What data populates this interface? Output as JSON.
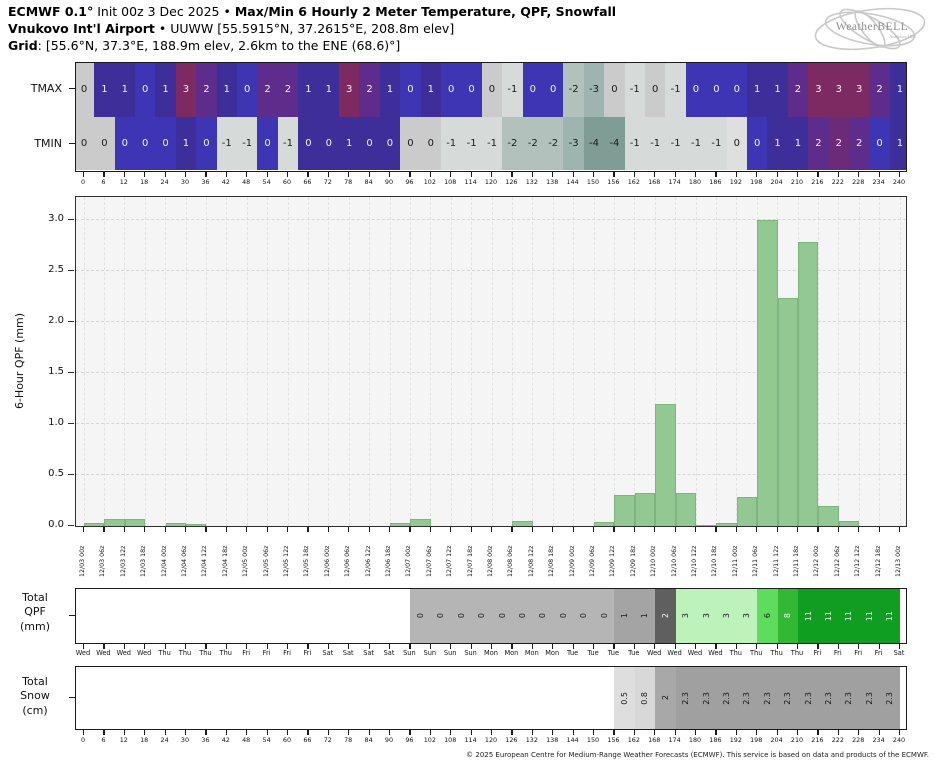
{
  "header": {
    "line1": {
      "bold1": "ECMWF 0.1°",
      "normal1": " Init 00z 3 Dec 2025 • ",
      "bold2": "Max/Min 6 Hourly 2 Meter Temperature, QPF, Snowfall"
    },
    "line2": {
      "bold": "Vnukovo Int'l Airport",
      "normal": " • UUWW [55.5915°N, 37.2615°E, 208.8m elev]"
    },
    "line3": {
      "bold": "Grid",
      "normal": ": [55.6°N, 37.3°E, 188.9m elev, 2.6km to the ENE (68.6)°]"
    },
    "logo": {
      "name": "WeatherBELL",
      "sub": "Analytics LLC"
    }
  },
  "chart_data": [
    {
      "type": "heatmap",
      "rows": [
        {
          "label": "TMAX",
          "values": [
            0,
            1,
            1,
            0,
            1,
            3,
            2,
            1,
            0,
            2,
            2,
            1,
            1,
            3,
            2,
            1,
            0,
            1,
            0,
            0,
            0,
            -1,
            0,
            0,
            -2,
            -3,
            0,
            -1,
            0,
            -1,
            0,
            0,
            0,
            1,
            1,
            2,
            3,
            3,
            3,
            2,
            1
          ],
          "colors": [
            "gray",
            "indigo",
            "indigo",
            "blue",
            "indigo",
            "magenta",
            "purple",
            "indigo",
            "blue",
            "purple",
            "purple",
            "indigo",
            "indigo",
            "magenta",
            "purple",
            "indigo",
            "blue",
            "indigo",
            "blue",
            "blue",
            "gray",
            "palegray",
            "blue",
            "blue",
            "gg1",
            "gg2",
            "gray",
            "palegray",
            "gray",
            "palegray",
            "blue",
            "blue",
            "blue",
            "indigo",
            "indigo",
            "purple",
            "magenta",
            "magenta",
            "magenta",
            "purple",
            "indigo"
          ]
        },
        {
          "label": "TMIN",
          "values": [
            0,
            0,
            0,
            0,
            0,
            1,
            0,
            -1,
            -1,
            0,
            -1,
            0,
            0,
            1,
            0,
            0,
            0,
            0,
            -1,
            -1,
            -1,
            -2,
            -2,
            -2,
            -3,
            -4,
            -4,
            -1,
            -1,
            -1,
            -1,
            -1,
            0,
            0,
            1,
            1,
            2,
            2,
            2,
            0,
            1
          ],
          "colors": [
            "gray",
            "gray",
            "blue",
            "blue",
            "blue",
            "indigo",
            "blue",
            "palegray",
            "palegray",
            "blue",
            "palegray",
            "indigo",
            "indigo",
            "indigo",
            "indigo",
            "indigo",
            "gray",
            "gray",
            "palegray",
            "palegray",
            "palegray",
            "gg1",
            "gg1",
            "gg1",
            "gg2",
            "gg3",
            "gg3",
            "palegray",
            "palegray",
            "palegray",
            "palegray",
            "palegray",
            "lightgray",
            "blue",
            "indigo",
            "indigo",
            "purple",
            "purple2",
            "purple",
            "blue",
            "indigo"
          ]
        }
      ],
      "palette": {
        "gray": "#cbcbcb",
        "lightgray": "#dfdfdf",
        "palegray": "#d6dad8",
        "blue": "#3d35b4",
        "indigo": "#3d2e99",
        "purple": "#5e2c8a",
        "purple2": "#6b2b78",
        "magenta": "#7d2a62",
        "gg1": "#b3c1bc",
        "gg2": "#9eb4ae",
        "gg3": "#7f9c95"
      },
      "x_tick_labels": [
        "0",
        "6",
        "12",
        "18",
        "24",
        "30",
        "36",
        "42",
        "48",
        "54",
        "60",
        "66",
        "72",
        "78",
        "84",
        "90",
        "96",
        "102",
        "108",
        "114",
        "120",
        "126",
        "132",
        "138",
        "144",
        "150",
        "156",
        "162",
        "168",
        "174",
        "180",
        "186",
        "192",
        "198",
        "204",
        "210",
        "216",
        "222",
        "228",
        "234",
        "240"
      ]
    },
    {
      "type": "bar",
      "ylabel": "6-Hour QPF (mm)",
      "ylim": [
        0,
        3.25
      ],
      "yticks": [
        0.0,
        0.5,
        1.0,
        1.5,
        2.0,
        2.5,
        3.0
      ],
      "grid": "on",
      "bar_color": "#92c892",
      "values": [
        0.03,
        0.07,
        0.07,
        0,
        0.03,
        0.02,
        0,
        0,
        0,
        0,
        0,
        0,
        0,
        0,
        0,
        0.03,
        0.07,
        0,
        0,
        0,
        0,
        0.05,
        0,
        0,
        0,
        0.04,
        0.3,
        0.32,
        1.2,
        0.32,
        0.01,
        0.03,
        0.28,
        3.0,
        2.24,
        2.78,
        0.2,
        0.05,
        0,
        0
      ],
      "x_tick_labels": [
        "12/03 00z",
        "12/03 06z",
        "12/03 12z",
        "12/03 18z",
        "12/04 00z",
        "12/04 06z",
        "12/04 12z",
        "12/04 18z",
        "12/05 00z",
        "12/05 06z",
        "12/05 12z",
        "12/05 18z",
        "12/06 00z",
        "12/06 06z",
        "12/06 12z",
        "12/06 18z",
        "12/07 00z",
        "12/07 06z",
        "12/07 12z",
        "12/07 18z",
        "12/08 00z",
        "12/08 06z",
        "12/08 12z",
        "12/08 18z",
        "12/09 00z",
        "12/09 06z",
        "12/09 12z",
        "12/09 18z",
        "12/10 00z",
        "12/10 06z",
        "12/10 12z",
        "12/10 18z",
        "12/11 00z",
        "12/11 06z",
        "12/11 12z",
        "12/11 18z",
        "12/12 00z",
        "12/12 06z",
        "12/12 12z",
        "12/12 18z",
        "12/13 00z"
      ]
    },
    {
      "type": "table",
      "label": "Total\nQPF\n(mm)",
      "values": [
        "",
        "",
        "",
        "",
        "",
        "",
        "",
        "",
        "",
        "",
        "",
        "",
        "",
        "",
        "",
        "",
        "0",
        "0",
        "0",
        "0",
        "0",
        "0",
        "0",
        "0",
        "0",
        "0",
        "1",
        "1",
        "2",
        "3",
        "3",
        "3",
        "3",
        "6",
        "8",
        "11",
        "11",
        "11",
        "11",
        "11"
      ],
      "bg": [
        "#ffffff",
        "#ffffff",
        "#ffffff",
        "#ffffff",
        "#ffffff",
        "#ffffff",
        "#ffffff",
        "#ffffff",
        "#ffffff",
        "#ffffff",
        "#ffffff",
        "#ffffff",
        "#ffffff",
        "#ffffff",
        "#ffffff",
        "#ffffff",
        "#b5b5b5",
        "#b5b5b5",
        "#b5b5b5",
        "#b5b5b5",
        "#b5b5b5",
        "#b5b5b5",
        "#b5b5b5",
        "#b5b5b5",
        "#b5b5b5",
        "#b5b5b5",
        "#a4a4a4",
        "#a4a4a4",
        "#5f5f5f",
        "#bdf2bb",
        "#bdf2bb",
        "#bdf2bb",
        "#bdf2bb",
        "#5edc5e",
        "#33b833",
        "#0f9e1f",
        "#0f9e1f",
        "#0f9e1f",
        "#0f9e1f",
        "#0f9e1f"
      ],
      "x_tick_labels": [
        "Wed",
        "Wed",
        "Wed",
        "Wed",
        "Thu",
        "Thu",
        "Thu",
        "Thu",
        "Fri",
        "Fri",
        "Fri",
        "Fri",
        "Sat",
        "Sat",
        "Sat",
        "Sat",
        "Sun",
        "Sun",
        "Sun",
        "Sun",
        "Mon",
        "Mon",
        "Mon",
        "Mon",
        "Tue",
        "Tue",
        "Tue",
        "Tue",
        "Wed",
        "Wed",
        "Wed",
        "Wed",
        "Thu",
        "Thu",
        "Thu",
        "Thu",
        "Fri",
        "Fri",
        "Fri",
        "Fri",
        "Sat"
      ]
    },
    {
      "type": "table",
      "label": "Total\nSnow\n(cm)",
      "values": [
        "",
        "",
        "",
        "",
        "",
        "",
        "",
        "",
        "",
        "",
        "",
        "",
        "",
        "",
        "",
        "",
        "",
        "",
        "",
        "",
        "",
        "",
        "",
        "",
        "",
        "",
        "0.5",
        "0.8",
        "2",
        "2.3",
        "2.3",
        "2.3",
        "2.3",
        "2.3",
        "2.3",
        "2.3",
        "2.3",
        "2.3",
        "2.3",
        "2.3"
      ],
      "bg": [
        "#ffffff",
        "#ffffff",
        "#ffffff",
        "#ffffff",
        "#ffffff",
        "#ffffff",
        "#ffffff",
        "#ffffff",
        "#ffffff",
        "#ffffff",
        "#ffffff",
        "#ffffff",
        "#ffffff",
        "#ffffff",
        "#ffffff",
        "#ffffff",
        "#ffffff",
        "#ffffff",
        "#ffffff",
        "#ffffff",
        "#ffffff",
        "#ffffff",
        "#ffffff",
        "#ffffff",
        "#ffffff",
        "#ffffff",
        "#dedede",
        "#d8d8d8",
        "#a8a8a8",
        "#a0a0a0",
        "#a0a0a0",
        "#a0a0a0",
        "#a0a0a0",
        "#a0a0a0",
        "#a0a0a0",
        "#a0a0a0",
        "#a0a0a0",
        "#a0a0a0",
        "#a0a0a0",
        "#a0a0a0"
      ],
      "x_tick_labels": [
        "0",
        "6",
        "12",
        "18",
        "24",
        "30",
        "36",
        "42",
        "48",
        "54",
        "60",
        "66",
        "72",
        "78",
        "84",
        "90",
        "96",
        "102",
        "108",
        "114",
        "120",
        "126",
        "132",
        "138",
        "144",
        "150",
        "156",
        "162",
        "168",
        "174",
        "180",
        "186",
        "192",
        "198",
        "204",
        "210",
        "216",
        "222",
        "228",
        "234",
        "240"
      ]
    }
  ],
  "footer": {
    "copyright": "© 2025 European Centre for Medium-Range Weather Forecasts (ECMWF). This service is based on data and products of the ECMWF."
  }
}
